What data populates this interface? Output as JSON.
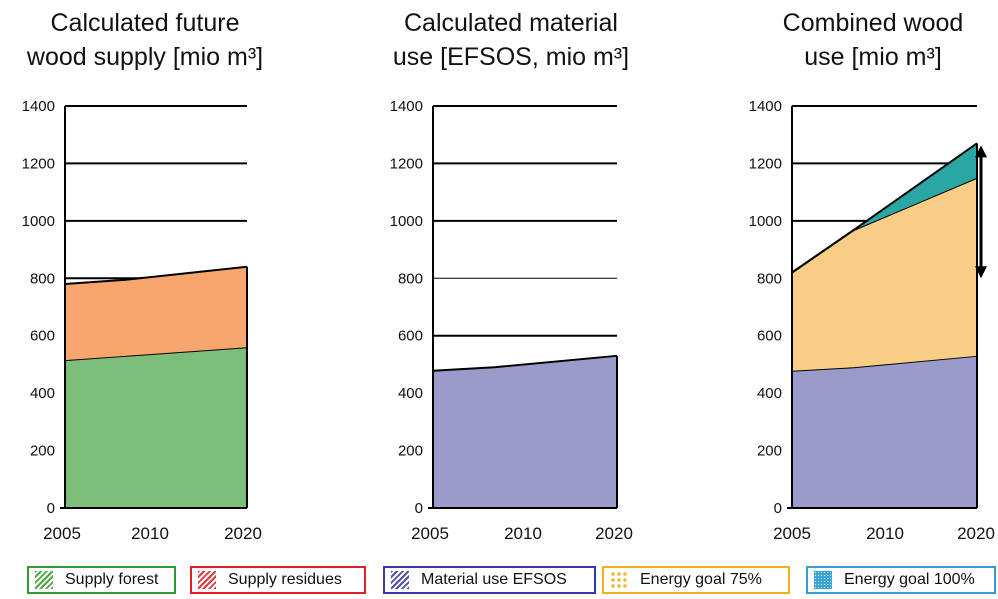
{
  "chart_data": [
    {
      "type": "area",
      "title": "Calculated future\nwood supply [mio m³]",
      "x": [
        2005,
        2010,
        2020
      ],
      "xticks": [
        "2005",
        "2010",
        "2020"
      ],
      "ylim": [
        0,
        1400
      ],
      "yticks": [
        "0",
        "200",
        "400",
        "600",
        "800",
        "1000",
        "1200",
        "1400"
      ],
      "stacked": true,
      "series": [
        {
          "name": "Supply forest",
          "values": [
            515,
            530,
            560
          ],
          "color": "#7cbf7a"
        },
        {
          "name": "Supply residues",
          "values": [
            265,
            265,
            280
          ],
          "color": "#f9a66e"
        }
      ],
      "grid": true
    },
    {
      "type": "area",
      "title": "Calculated material\nuse [EFSOS, mio m³]",
      "x": [
        2005,
        2010,
        2020
      ],
      "xticks": [
        "2005",
        "2010",
        "2020"
      ],
      "ylim": [
        0,
        1400
      ],
      "yticks": [
        "0",
        "200",
        "400",
        "600",
        "800",
        "1000",
        "1200",
        "1400"
      ],
      "stacked": true,
      "series": [
        {
          "name": "Material use EFSOS",
          "values": [
            478,
            490,
            530
          ],
          "color": "#9b9bcb"
        }
      ],
      "grid": true
    },
    {
      "type": "area",
      "title": "Combined wood\nuse [mio m³]",
      "x": [
        2005,
        2010,
        2020
      ],
      "xticks": [
        "2005",
        "2010",
        "2020"
      ],
      "ylim": [
        0,
        1400
      ],
      "yticks": [
        "0",
        "200",
        "400",
        "600",
        "800",
        "1000",
        "1200",
        "1400"
      ],
      "stacked": true,
      "series": [
        {
          "name": "Material use EFSOS",
          "values": [
            478,
            490,
            530
          ],
          "color": "#9b9bcb"
        },
        {
          "name": "Energy goal 75%",
          "values": [
            342,
            478,
            620
          ],
          "color": "#f8cd86"
        },
        {
          "name": "Energy goal 100%",
          "values": [
            0,
            0,
            120
          ],
          "color": "#2aa6a4"
        }
      ],
      "annotation": "double-headed arrow at 2020 spanning roughly 800 to 1270",
      "grid": true
    }
  ],
  "legend": [
    {
      "label": "Supply forest",
      "color": "#4ea845",
      "border": "#2e9a33",
      "pattern": "hatch"
    },
    {
      "label": "Supply residues",
      "color": "#e23a3a",
      "border": "#e02020",
      "pattern": "hatch"
    },
    {
      "label": "Material use EFSOS",
      "color": "#5050a8",
      "border": "#3a3aa0",
      "pattern": "hatch"
    },
    {
      "label": "Energy goal 75%",
      "color": "#f4b43a",
      "border": "#f0b020",
      "pattern": "diamond"
    },
    {
      "label": "Energy goal 100%",
      "color": "#3aa6d8",
      "border": "#3a9ad8",
      "pattern": "dots"
    }
  ]
}
